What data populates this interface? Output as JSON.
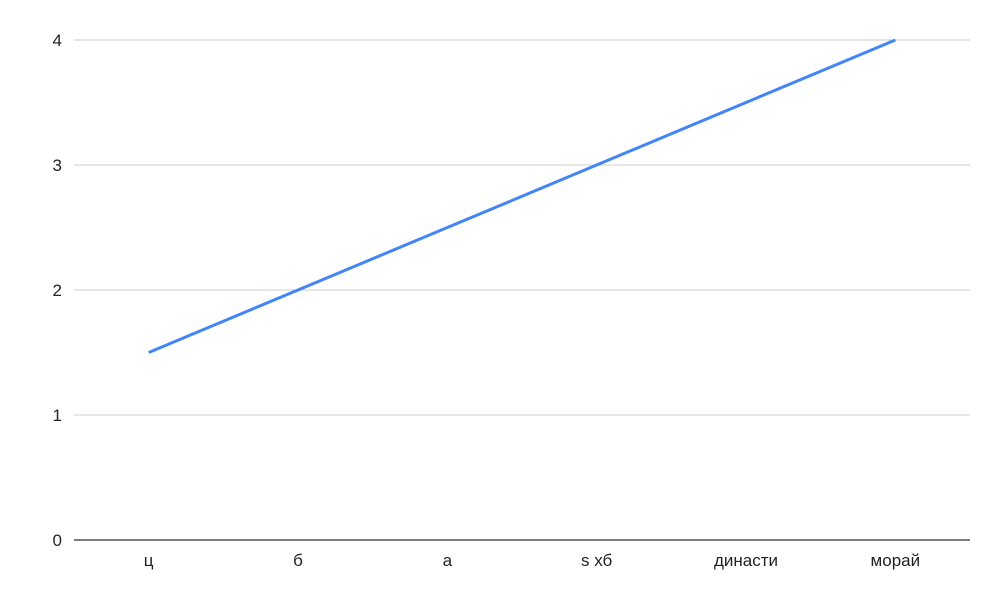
{
  "chart_data": {
    "type": "line",
    "title": "",
    "xlabel": "",
    "ylabel": "",
    "categories": [
      "ц",
      "б",
      "а",
      "s хб",
      "династи",
      "морай"
    ],
    "series": [
      {
        "values": [
          1.5,
          2,
          2.5,
          3,
          3.5,
          4
        ],
        "color": "#4285f4"
      }
    ],
    "ylim": [
      0,
      4
    ],
    "yticks": [
      "0",
      "1",
      "2",
      "3",
      "4"
    ],
    "grid": true,
    "legend": "none",
    "colors": {
      "grid": "#cccccc",
      "axis": "#333333",
      "line": "#4285f4"
    }
  }
}
